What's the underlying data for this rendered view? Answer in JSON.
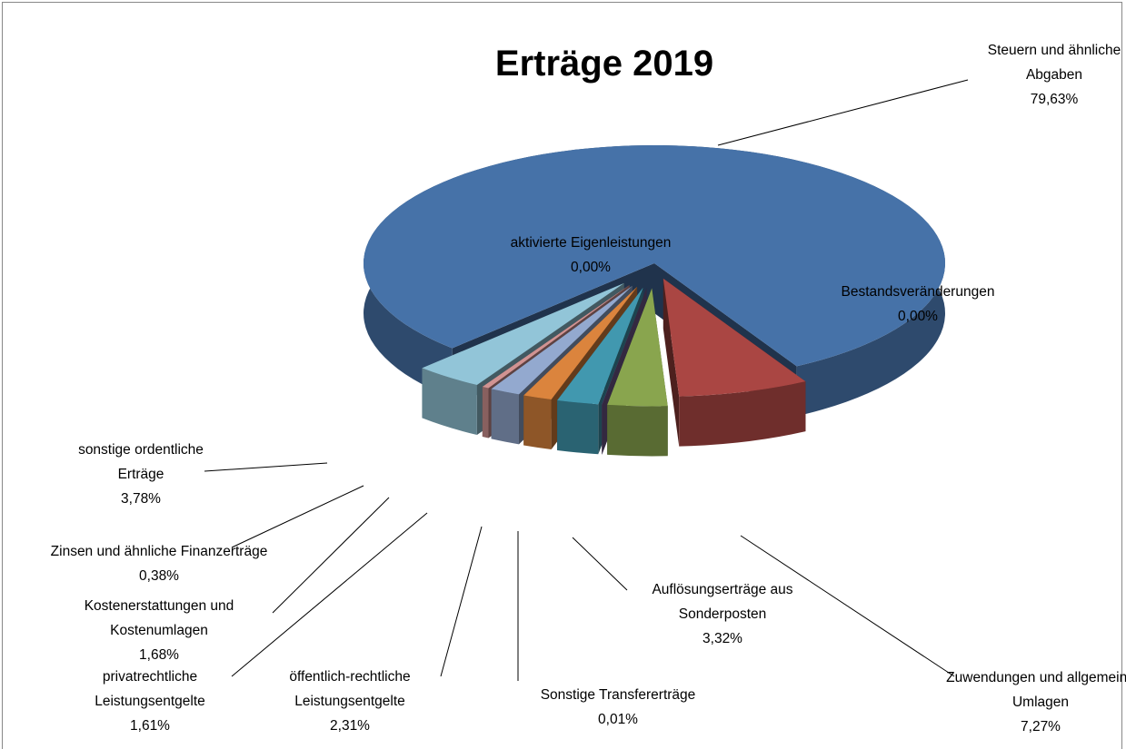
{
  "chart_data": {
    "type": "pie",
    "title": "Erträge 2019",
    "categories": [
      "Steuern und ähnliche Abgaben",
      "Zuwendungen und allgemeine Umlagen",
      "Auflösungserträge aus Sonderposten",
      "Sonstige Transfererträge",
      "öffentlich-rechtliche Leistungsentgelte",
      "privatrechtliche Leistungsentgelte",
      "Kostenerstattungen und Kostenumlagen",
      "Zinsen und ähnliche Finanzerträge",
      "sonstige ordentliche Erträge",
      "aktivierte Eigenleistungen",
      "Bestandsveränderungen"
    ],
    "values": [
      79.63,
      7.27,
      3.32,
      0.01,
      2.31,
      1.61,
      1.68,
      0.38,
      3.78,
      0.0,
      0.0
    ],
    "value_labels": [
      "79,63%",
      "7,27%",
      "3,32%",
      "0,01%",
      "2,31%",
      "1,61%",
      "1,68%",
      "0,38%",
      "3,78%",
      "0,00%",
      "0,00%"
    ],
    "colors": [
      "#4672a8",
      "#aa4643",
      "#89a54e",
      "#71588f",
      "#4198af",
      "#db843d",
      "#93a9cf",
      "#d19392",
      "#92c5d8",
      "#4bacc6",
      "#f79646"
    ]
  }
}
